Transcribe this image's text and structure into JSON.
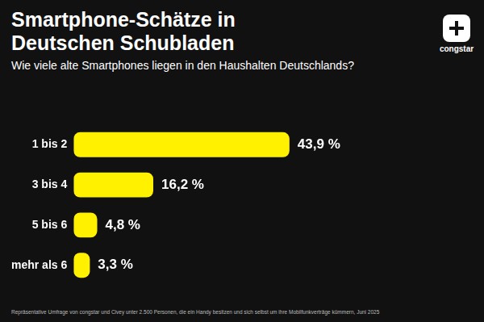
{
  "chart_data": {
    "type": "bar",
    "title": "Smartphone-Schätze in Deutschen Schubladen",
    "subtitle": "Wie viele alte Smartphones liegen in den Haushalten Deutschlands?",
    "categories": [
      "1 bis 2",
      "3 bis 4",
      "5 bis 6",
      "mehr als 6"
    ],
    "values": [
      43.9,
      16.2,
      4.8,
      3.3
    ],
    "value_labels": [
      "43,9 %",
      "16,2 %",
      "4,8 %",
      "3,3 %"
    ],
    "color": "#fff100",
    "orientation": "horizontal",
    "data_labels": true,
    "tick_labels": "y",
    "grid": false,
    "note": "Repräsentative Umfrage von congstar und Civey unter 2.500 Personen, die ein Handy besitzen und sich selbst um ihre Mobilfunkverträge kümmern, Juni 2025"
  },
  "logo": "congstar"
}
